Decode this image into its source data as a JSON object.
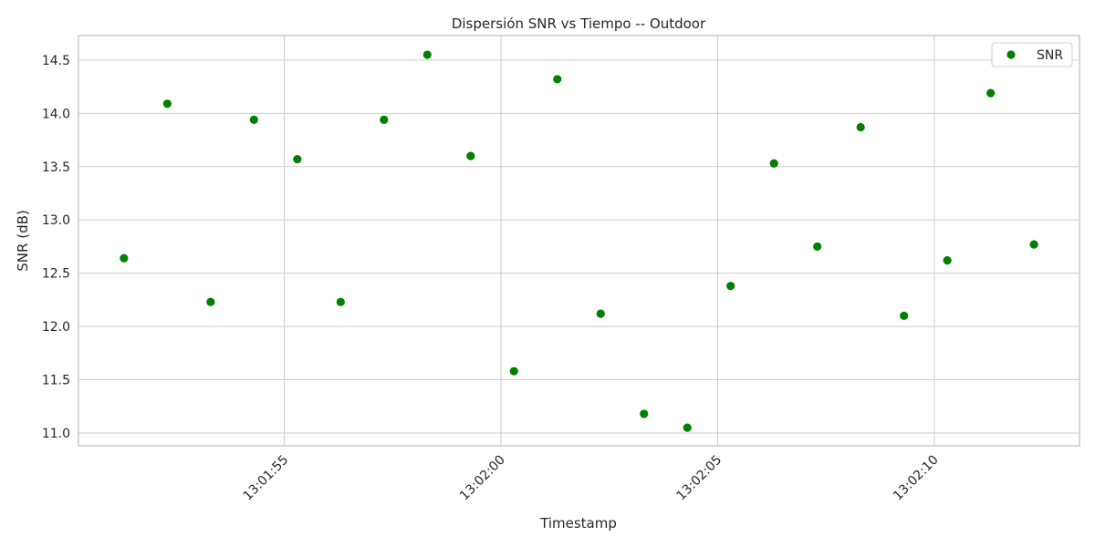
{
  "chart_data": {
    "type": "scatter",
    "title": "Dispersión SNR vs Tiempo -- Outdoor",
    "xlabel": "Timestamp",
    "ylabel": "SNR (dB)",
    "x_ticks": [
      "13:01:55",
      "13:02:00",
      "13:02:05",
      "13:02:10"
    ],
    "y_ticks": [
      "11.0",
      "11.5",
      "12.0",
      "12.5",
      "13.0",
      "13.5",
      "14.0",
      "14.5"
    ],
    "xlim": [
      "13:01:50.25",
      "13:02:13.35"
    ],
    "ylim": [
      10.88,
      14.73
    ],
    "grid": true,
    "legend_position": "top-right",
    "series": [
      {
        "name": "SNR",
        "color": "#008000",
        "points": [
          {
            "x": "13:01:51.3",
            "y": 12.64
          },
          {
            "x": "13:01:52.3",
            "y": 14.09
          },
          {
            "x": "13:01:53.3",
            "y": 12.23
          },
          {
            "x": "13:01:54.3",
            "y": 13.94
          },
          {
            "x": "13:01:55.3",
            "y": 13.57
          },
          {
            "x": "13:01:56.3",
            "y": 12.23
          },
          {
            "x": "13:01:57.3",
            "y": 13.94
          },
          {
            "x": "13:01:58.3",
            "y": 14.55
          },
          {
            "x": "13:01:59.3",
            "y": 13.6
          },
          {
            "x": "13:02:00.3",
            "y": 11.58
          },
          {
            "x": "13:02:01.3",
            "y": 14.32
          },
          {
            "x": "13:02:02.3",
            "y": 12.12
          },
          {
            "x": "13:02:03.3",
            "y": 11.18
          },
          {
            "x": "13:02:04.3",
            "y": 11.05
          },
          {
            "x": "13:02:05.3",
            "y": 12.38
          },
          {
            "x": "13:02:06.3",
            "y": 13.53
          },
          {
            "x": "13:02:07.3",
            "y": 12.75
          },
          {
            "x": "13:02:08.3",
            "y": 13.87
          },
          {
            "x": "13:02:09.3",
            "y": 12.1
          },
          {
            "x": "13:02:10.3",
            "y": 12.62
          },
          {
            "x": "13:02:11.3",
            "y": 14.19
          },
          {
            "x": "13:02:12.3",
            "y": 12.77
          }
        ]
      }
    ]
  }
}
